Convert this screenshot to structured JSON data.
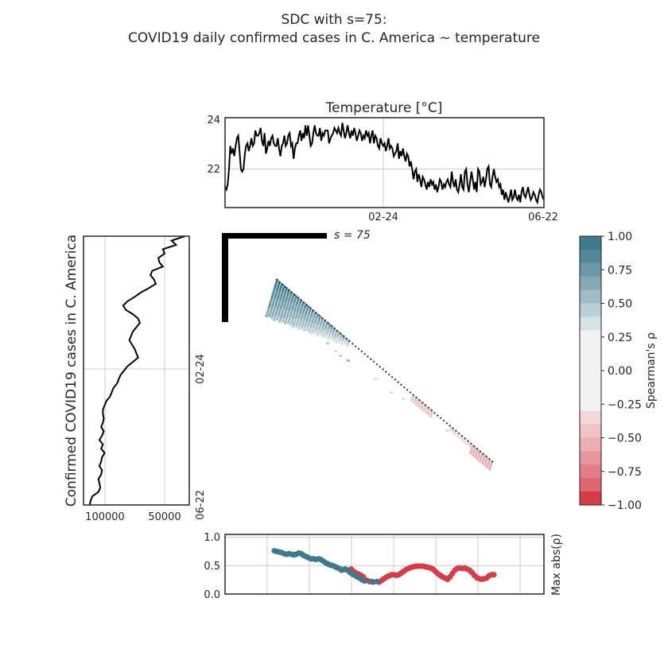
{
  "figure": {
    "title_line1": "SDC with s=75:",
    "title_line2": "COVID19 daily confirmed cases in C. America ~ temperature"
  },
  "colors": {
    "positive": "#3d7a8c",
    "negative": "#d93a46",
    "neutral": "#f2f2f2",
    "line": "#000000",
    "grid": "#cccccc"
  },
  "chart_data": [
    {
      "id": "temperature",
      "type": "line",
      "title": "Temperature [°C]",
      "ylim": [
        20.5,
        24
      ],
      "yticks": [
        "24",
        "22"
      ],
      "xticks": [
        "02-24",
        "06-22"
      ],
      "values": [
        21.3,
        21.2,
        21.4,
        22.0,
        22.9,
        22.6,
        22.8,
        22.5,
        22.9,
        23.2,
        23.3,
        22.7,
        22.0,
        21.9,
        22.0,
        22.6,
        22.9,
        23.0,
        22.7,
        22.9,
        23.2,
        22.9,
        23.0,
        23.5,
        23.3,
        23.3,
        23.4,
        23.6,
        23.1,
        22.9,
        23.4,
        22.6,
        22.8,
        23.1,
        22.9,
        23.2,
        23.3,
        23.0,
        22.9,
        22.9,
        23.2,
        22.8,
        22.5,
        22.9,
        23.0,
        23.3,
        22.9,
        23.0,
        23.3,
        23.4,
        22.9,
        23.0,
        22.4,
        22.8,
        23.0,
        23.0,
        23.3,
        23.5,
        23.1,
        23.4,
        23.2,
        23.7,
        23.3,
        23.7,
        23.3,
        22.9,
        23.0,
        23.4,
        23.7,
        23.4,
        23.3,
        23.3,
        23.6,
        23.1,
        23.4,
        23.3,
        23.5,
        23.5,
        23.5,
        23.0,
        23.2,
        23.3,
        23.4,
        23.6,
        23.5,
        23.4,
        23.6,
        23.4,
        23.3,
        23.8,
        23.5,
        23.2,
        23.4,
        23.7,
        23.4,
        23.2,
        23.5,
        23.3,
        23.6,
        23.4,
        23.1,
        23.3,
        23.5,
        23.4,
        23.1,
        23.3,
        23.2,
        23.5,
        23.3,
        23.4,
        23.0,
        23.3,
        23.5,
        23.0,
        23.3,
        23.2,
        22.9,
        22.8,
        23.2,
        23.0,
        22.9,
        23.0,
        22.7,
        22.9,
        23.2,
        22.8,
        22.9,
        22.8,
        22.5,
        22.6,
        22.7,
        23.0,
        22.4,
        22.7,
        22.5,
        22.8,
        22.5,
        22.3,
        22.6,
        22.5,
        22.1,
        22.3,
        22.0,
        21.6,
        21.9,
        22.0,
        21.5,
        21.8,
        21.6,
        21.3,
        21.7,
        21.6,
        21.4,
        21.2,
        21.5,
        21.3,
        21.6,
        21.4,
        21.5,
        21.2,
        21.4,
        21.1,
        21.3,
        21.6,
        21.5,
        21.2,
        21.4,
        21.3,
        21.5,
        21.6,
        21.4,
        21.3,
        21.9,
        21.5,
        21.3,
        21.6,
        21.2,
        21.1,
        21.4,
        21.8,
        21.3,
        21.2,
        21.9,
        22.0,
        21.4,
        21.1,
        21.5,
        21.9,
        21.6,
        21.2,
        21.5,
        21.1,
        22.0,
        21.9,
        21.4,
        21.5,
        21.7,
        21.3,
        21.6,
        22.0,
        22.1,
        21.4,
        21.3,
        21.7,
        22.0,
        21.7,
        21.5,
        21.6,
        21.3,
        21.4,
        21.0,
        21.2,
        20.8,
        21.1,
        20.9,
        20.7,
        20.9,
        21.2,
        20.8,
        20.9,
        21.2,
        20.9,
        20.8,
        21.0,
        20.7,
        21.1,
        21.3,
        21.0,
        20.9,
        21.1,
        21.3,
        21.0,
        20.8,
        20.9,
        21.1,
        21.0,
        20.8,
        20.7,
        21.0,
        21.2,
        21.1,
        20.9,
        20.8
      ]
    },
    {
      "id": "cases",
      "type": "line",
      "ylabel": "Confirmed COVID19 cases in C. America",
      "xticks": [
        "100000",
        "50000"
      ],
      "yticks": [
        "02-24",
        "06-22"
      ],
      "xlim": [
        120000,
        0
      ],
      "values": [
        5000,
        20000,
        15000,
        30000,
        28000,
        35000,
        34000,
        30000,
        42000,
        44000,
        40000,
        38000,
        46000,
        55000,
        62000,
        70000,
        75000,
        72000,
        64000,
        58000,
        56000,
        60000,
        64000,
        66000,
        68000,
        65000,
        62000,
        60000,
        58000,
        64000,
        70000,
        74000,
        78000,
        80000,
        82000,
        86000,
        88000,
        90000,
        94000,
        96000,
        98000,
        98000,
        97000,
        98000,
        100000,
        97000,
        99000,
        102000,
        98000,
        100000,
        96000,
        99000,
        100000,
        102000,
        99000,
        100000,
        103000,
        102000,
        101000,
        103000,
        110000,
        112000,
        113000
      ]
    },
    {
      "id": "max_abs_rho",
      "type": "scatter",
      "ylabel": "Max abs(ρ)",
      "ylim": [
        0,
        1.05
      ],
      "yticks": [
        "1.0",
        "0.5",
        "0.0"
      ],
      "points_positive": [
        [
          0,
          0.76
        ],
        [
          2,
          0.75
        ],
        [
          4,
          0.74
        ],
        [
          6,
          0.73
        ],
        [
          8,
          0.71
        ],
        [
          10,
          0.7
        ],
        [
          12,
          0.71
        ],
        [
          14,
          0.7
        ],
        [
          16,
          0.69
        ],
        [
          18,
          0.7
        ],
        [
          20,
          0.72
        ],
        [
          22,
          0.71
        ],
        [
          24,
          0.68
        ],
        [
          26,
          0.66
        ],
        [
          28,
          0.64
        ],
        [
          30,
          0.62
        ],
        [
          32,
          0.62
        ],
        [
          34,
          0.61
        ],
        [
          36,
          0.62
        ],
        [
          38,
          0.61
        ],
        [
          40,
          0.58
        ],
        [
          42,
          0.55
        ],
        [
          44,
          0.53
        ],
        [
          46,
          0.51
        ],
        [
          48,
          0.5
        ],
        [
          50,
          0.48
        ],
        [
          52,
          0.46
        ],
        [
          54,
          0.44
        ],
        [
          56,
          0.43
        ],
        [
          58,
          0.44
        ],
        [
          60,
          0.42
        ],
        [
          62,
          0.38
        ],
        [
          64,
          0.35
        ],
        [
          66,
          0.33
        ],
        [
          68,
          0.3
        ],
        [
          70,
          0.28
        ],
        [
          72,
          0.25
        ],
        [
          74,
          0.23
        ],
        [
          80,
          0.22
        ],
        [
          84,
          0.22
        ]
      ],
      "points_negative": [
        [
          55,
          0.42
        ],
        [
          57,
          0.43
        ],
        [
          63,
          0.44
        ],
        [
          65,
          0.4
        ],
        [
          67,
          0.37
        ],
        [
          69,
          0.35
        ],
        [
          71,
          0.33
        ],
        [
          73,
          0.3
        ],
        [
          76,
          0.24
        ],
        [
          78,
          0.22
        ],
        [
          81,
          0.21
        ],
        [
          86,
          0.21
        ],
        [
          88,
          0.24
        ],
        [
          90,
          0.27
        ],
        [
          92,
          0.3
        ],
        [
          94,
          0.32
        ],
        [
          96,
          0.34
        ],
        [
          98,
          0.34
        ],
        [
          100,
          0.33
        ],
        [
          102,
          0.34
        ],
        [
          104,
          0.37
        ],
        [
          106,
          0.4
        ],
        [
          108,
          0.43
        ],
        [
          110,
          0.45
        ],
        [
          112,
          0.47
        ],
        [
          114,
          0.48
        ],
        [
          116,
          0.49
        ],
        [
          118,
          0.49
        ],
        [
          120,
          0.49
        ],
        [
          122,
          0.49
        ],
        [
          124,
          0.48
        ],
        [
          126,
          0.47
        ],
        [
          128,
          0.46
        ],
        [
          130,
          0.44
        ],
        [
          132,
          0.4
        ],
        [
          134,
          0.36
        ],
        [
          136,
          0.33
        ],
        [
          138,
          0.3
        ],
        [
          140,
          0.28
        ],
        [
          142,
          0.26
        ],
        [
          144,
          0.3
        ],
        [
          146,
          0.36
        ],
        [
          148,
          0.42
        ],
        [
          150,
          0.45
        ],
        [
          152,
          0.46
        ],
        [
          154,
          0.45
        ],
        [
          156,
          0.46
        ],
        [
          158,
          0.44
        ],
        [
          160,
          0.42
        ],
        [
          162,
          0.38
        ],
        [
          164,
          0.33
        ],
        [
          166,
          0.29
        ],
        [
          168,
          0.27
        ],
        [
          170,
          0.26
        ],
        [
          172,
          0.27
        ],
        [
          174,
          0.28
        ],
        [
          176,
          0.32
        ],
        [
          178,
          0.34
        ],
        [
          180,
          0.34
        ]
      ]
    },
    {
      "id": "colorbar",
      "type": "heatmap",
      "label": "Spearman's ρ",
      "ticks": [
        "1.00",
        "0.75",
        "0.50",
        "0.25",
        "0.00",
        "−0.25",
        "−0.50",
        "−0.75",
        "−1.00"
      ],
      "range": [
        -1,
        1
      ]
    }
  ],
  "scale": {
    "label": "s = 75"
  }
}
